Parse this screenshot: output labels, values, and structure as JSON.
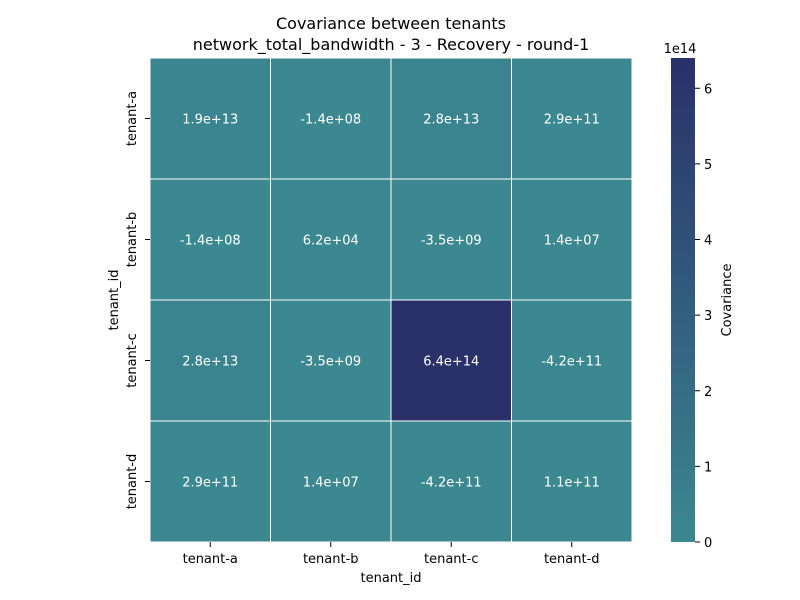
{
  "chart_data": {
    "type": "heatmap",
    "title": "Covariance between tenants",
    "subtitle": "network_total_bandwidth - 3 - Recovery - round-1",
    "xlabel": "tenant_id",
    "ylabel": "tenant_id",
    "x_categories": [
      "tenant-a",
      "tenant-b",
      "tenant-c",
      "tenant-d"
    ],
    "y_categories": [
      "tenant-a",
      "tenant-b",
      "tenant-c",
      "tenant-d"
    ],
    "values": [
      [
        19000000000000.0,
        -140000000.0,
        28000000000000.0,
        290000000000.0
      ],
      [
        -140000000.0,
        62000.0,
        -3500000000.0,
        14000000.0
      ],
      [
        28000000000000.0,
        -3500000000.0,
        640000000000000.0,
        -420000000000.0
      ],
      [
        290000000000.0,
        14000000.0,
        -420000000000.0,
        110000000000.0
      ]
    ],
    "annotations": [
      [
        "1.9e+13",
        "-1.4e+08",
        "2.8e+13",
        "2.9e+11"
      ],
      [
        "-1.4e+08",
        "6.2e+04",
        "-3.5e+09",
        "1.4e+07"
      ],
      [
        "2.8e+13",
        "-3.5e+09",
        "6.4e+14",
        "-4.2e+11"
      ],
      [
        "2.9e+11",
        "1.4e+07",
        "-4.2e+11",
        "1.1e+11"
      ]
    ],
    "colorbar": {
      "label": "Covariance",
      "multiplier": "1e14",
      "range": [
        0,
        640000000000000.0
      ],
      "ticks": [
        0,
        1,
        2,
        3,
        4,
        5,
        6
      ],
      "scale": 100000000000000.0,
      "colors": [
        "#3b8891",
        "#2a3068"
      ]
    }
  }
}
